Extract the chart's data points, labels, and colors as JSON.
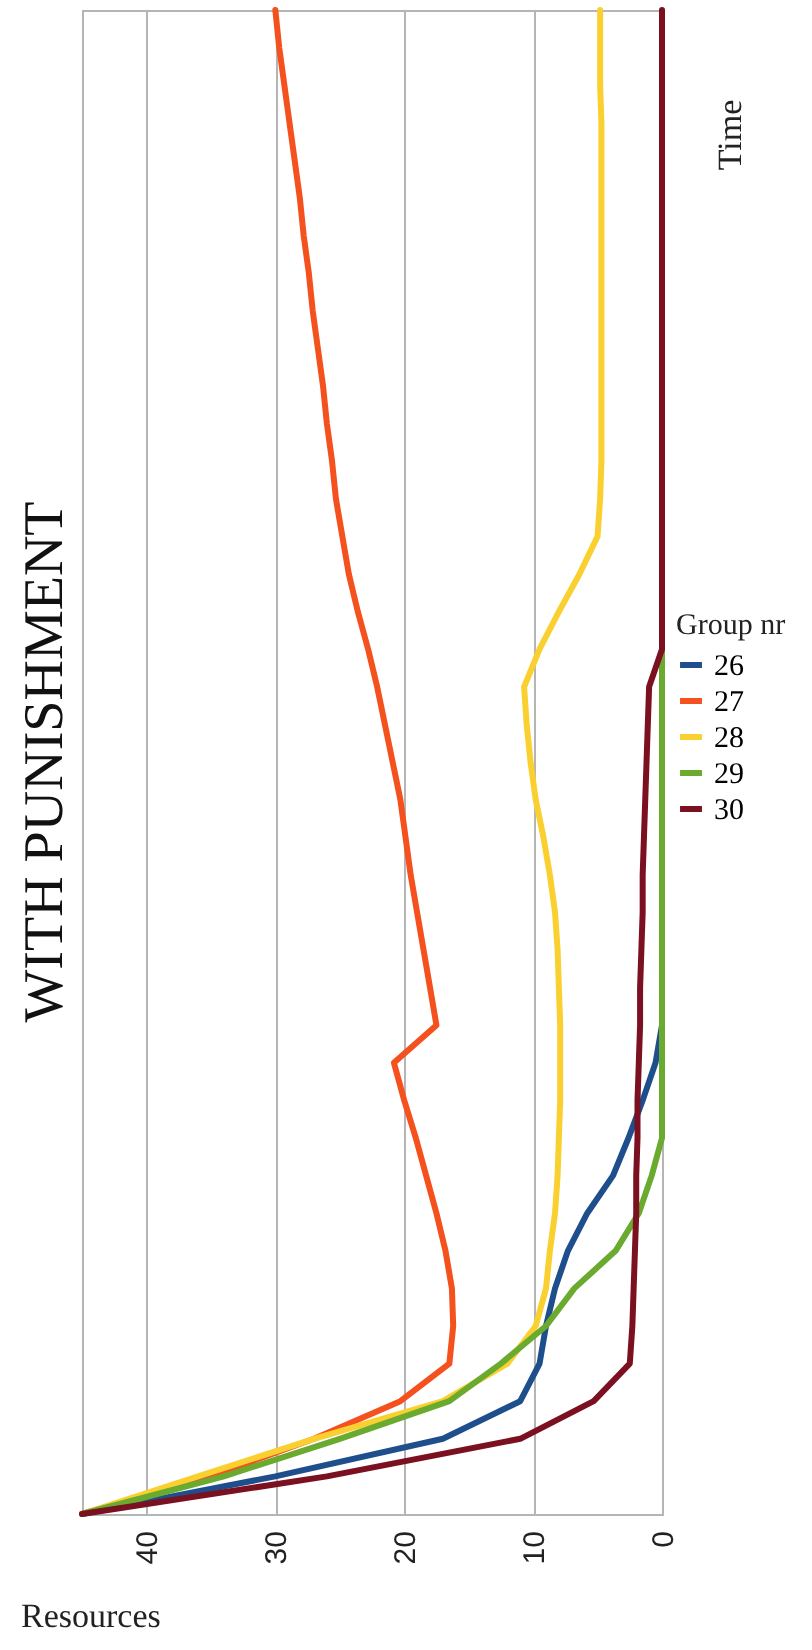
{
  "chart_data": {
    "type": "line",
    "orientation": "horizontal",
    "title": "WITH PUNISHMENT",
    "xlabel": "Resources",
    "ylabel": "Time",
    "legend_title": "Group nr",
    "categories": [
      null,
      null,
      null,
      null,
      null,
      null,
      null,
      null,
      null,
      null,
      null,
      null,
      null,
      null,
      null,
      null,
      null,
      null,
      null,
      null,
      null,
      null,
      null,
      null,
      null,
      null,
      null,
      null,
      null,
      null,
      null,
      null,
      null,
      null,
      null,
      null,
      null,
      null,
      null,
      null,
      null
    ],
    "series": [
      {
        "name": "26",
        "color": "#1f4e8c",
        "values": [
          null,
          null,
          null,
          null,
          null,
          null,
          null,
          null,
          null,
          null,
          null,
          null,
          null,
          null,
          null,
          null,
          null,
          null,
          null,
          null,
          null,
          null,
          null,
          null,
          null,
          null,
          null,
          0,
          0.5,
          1.5,
          2.6,
          3.8,
          5.8,
          7.3,
          8.3,
          9,
          9.5,
          11,
          17,
          30,
          45
        ]
      },
      {
        "name": "27",
        "color": "#f4511e",
        "values": [
          30,
          29.7,
          29.3,
          28.9,
          28.5,
          28.1,
          27.8,
          27.4,
          27.1,
          26.7,
          26.3,
          26,
          25.6,
          25.3,
          24.8,
          24.3,
          23.6,
          22.8,
          22.1,
          21.5,
          20.9,
          20.3,
          19.9,
          19.5,
          19,
          18.5,
          18,
          17.5,
          20.8,
          20,
          19.1,
          18.3,
          17.5,
          16.8,
          16.3,
          16.2,
          16.5,
          20.3,
          27,
          35,
          45
        ]
      },
      {
        "name": "28",
        "color": "#f9d030",
        "values": [
          4.8,
          4.8,
          4.8,
          4.7,
          4.7,
          4.7,
          4.7,
          4.7,
          4.7,
          4.7,
          4.7,
          4.7,
          4.7,
          4.8,
          5,
          6.4,
          8,
          9.5,
          10.7,
          10.5,
          10.2,
          9.8,
          9.2,
          8.7,
          8.3,
          8.1,
          8,
          7.9,
          7.9,
          7.9,
          8,
          8.1,
          8.3,
          8.7,
          9,
          9.8,
          12,
          17,
          27,
          36,
          45
        ]
      },
      {
        "name": "29",
        "color": "#6aaa2e",
        "values": [
          null,
          null,
          null,
          null,
          null,
          null,
          null,
          null,
          null,
          null,
          null,
          null,
          null,
          null,
          null,
          null,
          null,
          0,
          0,
          0,
          0,
          0,
          0,
          0,
          0,
          0,
          0,
          0,
          0,
          0,
          0,
          0.8,
          1.8,
          3.6,
          6.8,
          9,
          12.5,
          16.5,
          25,
          34,
          45
        ]
      },
      {
        "name": "30",
        "color": "#7b1020",
        "values": [
          0,
          0,
          0,
          0,
          0,
          0,
          0,
          0,
          0,
          0,
          0,
          0,
          0,
          0,
          0,
          0,
          0,
          0,
          1,
          1.1,
          1.2,
          1.3,
          1.4,
          1.5,
          1.5,
          1.6,
          1.7,
          1.7,
          1.8,
          1.9,
          1.9,
          2,
          2,
          2.1,
          2.2,
          2.3,
          2.5,
          5.3,
          11,
          26,
          45
        ]
      }
    ],
    "xlim": [
      45,
      0
    ],
    "xticks": [
      40,
      30,
      20,
      10,
      0
    ],
    "grid": "x",
    "legend": "right",
    "tick_labels": "x",
    "line_style": "solid"
  }
}
